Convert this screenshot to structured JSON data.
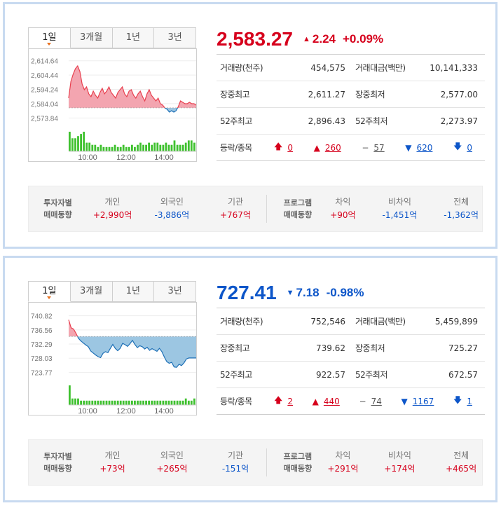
{
  "panels": [
    {
      "tabs": [
        "1일",
        "3개월",
        "1년",
        "3년"
      ],
      "active_tab": 0,
      "quote": {
        "price": "2,583.27",
        "change": "2.24",
        "change_pct": "+0.09%",
        "direction": "up",
        "change_icon": "triangle-up-icon"
      },
      "stats": [
        {
          "label": "거래량(천주)",
          "value": "454,575",
          "label2": "거래대금(백만)",
          "value2": "10,141,333"
        },
        {
          "label": "장중최고",
          "value": "2,611.27",
          "label2": "장중최저",
          "value2": "2,577.00"
        },
        {
          "label": "52주최고",
          "value": "2,896.43",
          "label2": "52주최저",
          "value2": "2,273.97"
        }
      ],
      "breadth": {
        "label": "등락/종목",
        "items": [
          {
            "icon": "arrow-up-icon",
            "glyph": "🡅",
            "value": "0",
            "color": "#d6001c"
          },
          {
            "icon": "triangle-up-icon",
            "glyph": "▲",
            "value": "260",
            "color": "#d6001c"
          },
          {
            "icon": "dash-icon",
            "glyph": "−",
            "value": "57",
            "color": "#555555"
          },
          {
            "icon": "triangle-down-icon",
            "glyph": "▼",
            "value": "620",
            "color": "#0d56c9"
          },
          {
            "icon": "arrow-down-icon",
            "glyph": "🡇",
            "value": "0",
            "color": "#0d56c9"
          }
        ]
      },
      "investor_flow": {
        "caption1": "투자자별",
        "caption2": "매매동향",
        "items": [
          {
            "label": "개인",
            "value": "+2,990억",
            "dir": "up"
          },
          {
            "label": "외국인",
            "value": "-3,886억",
            "dir": "down"
          },
          {
            "label": "기관",
            "value": "+767억",
            "dir": "up"
          }
        ]
      },
      "program_flow": {
        "caption1": "프로그램",
        "caption2": "매매동향",
        "items": [
          {
            "label": "차익",
            "value": "+90억",
            "dir": "up"
          },
          {
            "label": "비차익",
            "value": "-1,451억",
            "dir": "down"
          },
          {
            "label": "전체",
            "value": "-1,362억",
            "dir": "down"
          }
        ]
      },
      "chart_data": {
        "type": "area",
        "y_ticks": [
          "2,614.64",
          "2,604.44",
          "2,594.24",
          "2,584.04",
          "2,573.84"
        ],
        "ylim": [
          2571.0,
          2616.0
        ],
        "x_ticks": [
          "10:00",
          "12:00",
          "14:00"
        ],
        "baseline": 2581.03,
        "series": [
          {
            "values": [
              2588,
              2600,
              2605,
              2609,
              2611,
              2607,
              2598,
              2594,
              2596,
              2591,
              2589,
              2593,
              2590,
              2588,
              2592,
              2595,
              2591,
              2593,
              2596,
              2592,
              2590,
              2588,
              2592,
              2594,
              2596,
              2591,
              2589,
              2593,
              2594,
              2590,
              2588,
              2591,
              2593,
              2589,
              2586,
              2591,
              2594,
              2590,
              2588,
              2586,
              2588,
              2584,
              2583,
              2581,
              2580,
              2578,
              2579,
              2578,
              2579,
              2582,
              2586,
              2585,
              2584,
              2584,
              2585,
              2584,
              2584,
              2583
            ]
          }
        ],
        "volume": [
          9,
          6,
          6,
          7,
          8,
          9,
          4,
          4,
          3,
          3,
          2,
          3,
          2,
          2,
          2,
          2,
          3,
          2,
          2,
          3,
          2,
          2,
          3,
          2,
          3,
          4,
          3,
          3,
          4,
          3,
          4,
          4,
          3,
          3,
          4,
          3,
          3,
          5,
          3,
          3,
          3,
          4,
          5,
          5,
          4
        ],
        "up_color": "#e8404f",
        "up_fill": "#f3a5b0",
        "down_color": "#1c6fb6",
        "down_fill": "#9cc6e2",
        "volume_color": "#3fc12f"
      }
    },
    {
      "tabs": [
        "1일",
        "3개월",
        "1년",
        "3년"
      ],
      "active_tab": 0,
      "quote": {
        "price": "727.41",
        "change": "7.18",
        "change_pct": "-0.98%",
        "direction": "down",
        "change_icon": "triangle-down-icon"
      },
      "stats": [
        {
          "label": "거래량(천주)",
          "value": "752,546",
          "label2": "거래대금(백만)",
          "value2": "5,459,899"
        },
        {
          "label": "장중최고",
          "value": "739.62",
          "label2": "장중최저",
          "value2": "725.27"
        },
        {
          "label": "52주최고",
          "value": "922.57",
          "label2": "52주최저",
          "value2": "672.57"
        }
      ],
      "breadth": {
        "label": "등락/종목",
        "items": [
          {
            "icon": "arrow-up-icon",
            "glyph": "🡅",
            "value": "2",
            "color": "#d6001c"
          },
          {
            "icon": "triangle-up-icon",
            "glyph": "▲",
            "value": "440",
            "color": "#d6001c"
          },
          {
            "icon": "dash-icon",
            "glyph": "−",
            "value": "74",
            "color": "#555555"
          },
          {
            "icon": "triangle-down-icon",
            "glyph": "▼",
            "value": "1167",
            "color": "#0d56c9"
          },
          {
            "icon": "arrow-down-icon",
            "glyph": "🡇",
            "value": "1",
            "color": "#0d56c9"
          }
        ]
      },
      "investor_flow": {
        "caption1": "투자자별",
        "caption2": "매매동향",
        "items": [
          {
            "label": "개인",
            "value": "+73억",
            "dir": "up"
          },
          {
            "label": "외국인",
            "value": "+265억",
            "dir": "up"
          },
          {
            "label": "기관",
            "value": "-151억",
            "dir": "down"
          }
        ]
      },
      "program_flow": {
        "caption1": "프로그램",
        "caption2": "매매동향",
        "items": [
          {
            "label": "차익",
            "value": "+291억",
            "dir": "up"
          },
          {
            "label": "비차익",
            "value": "+174억",
            "dir": "up"
          },
          {
            "label": "전체",
            "value": "+465억",
            "dir": "up"
          }
        ]
      },
      "chart_data": {
        "type": "area",
        "y_ticks": [
          "740.82",
          "736.56",
          "732.29",
          "728.03",
          "723.77"
        ],
        "ylim": [
          722.8,
          741.8
        ],
        "x_ticks": [
          "10:00",
          "12:00",
          "14:00"
        ],
        "baseline": 734.59,
        "series": [
          {
            "values": [
              739.6,
              737.2,
              736.8,
              735.5,
              734.0,
              733.2,
              732.6,
              732.0,
              731.5,
              730.2,
              729.6,
              729.0,
              728.5,
              728.2,
              729.5,
              730.0,
              729.7,
              731.0,
              732.2,
              731.0,
              730.3,
              731.0,
              732.5,
              732.1,
              731.6,
              732.4,
              733.4,
              732.2,
              731.2,
              731.8,
              731.5,
              730.8,
              731.3,
              730.4,
              730.9,
              730.5,
              730.1,
              731.0,
              730.0,
              728.4,
              727.0,
              726.5,
              726.8,
              725.4,
              725.3,
              726.2,
              725.8,
              726.6,
              727.8,
              728.1,
              728.1,
              728.1,
              728.1
            ]
          }
        ],
        "volume": [
          9,
          3,
          3,
          3,
          2,
          2,
          2,
          2,
          2,
          2,
          2,
          2,
          2,
          2,
          2,
          2,
          2,
          2,
          2,
          2,
          2,
          2,
          2,
          2,
          2,
          2,
          2,
          2,
          2,
          2,
          2,
          2,
          2,
          2,
          2,
          2,
          2,
          2,
          2,
          2,
          2,
          3,
          2,
          2,
          3
        ],
        "up_color": "#e8404f",
        "up_fill": "#f3a5b0",
        "down_color": "#1c6fb6",
        "down_fill": "#9cc6e2",
        "volume_color": "#3fc12f"
      }
    }
  ]
}
